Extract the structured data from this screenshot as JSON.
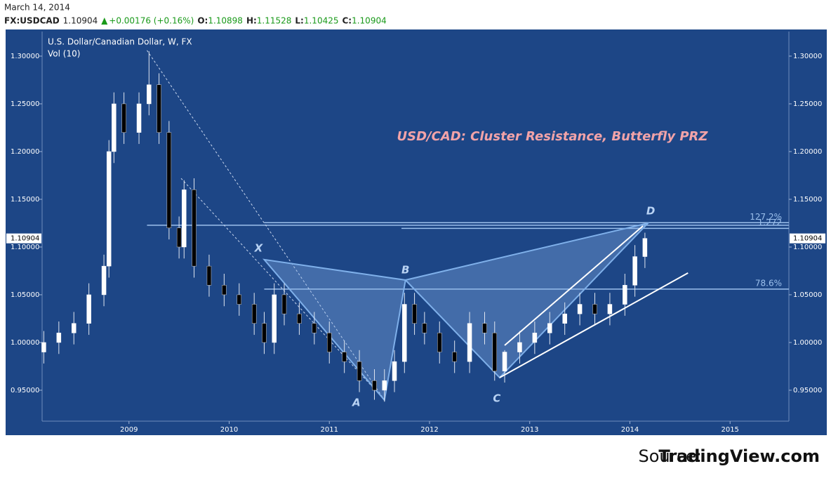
{
  "header": {
    "date": "March 14, 2014",
    "symbol": "FX:USDCAD",
    "price": "1.10904",
    "change": "+0.00176 (+0.16%)",
    "ohlc": [
      {
        "label": "O:",
        "value": "1.10898"
      },
      {
        "label": "H:",
        "value": "1.11528"
      },
      {
        "label": "L:",
        "value": "1.10425"
      },
      {
        "label": "C:",
        "value": "1.10904"
      }
    ]
  },
  "chart_data": {
    "type": "candlestick",
    "title": "USD/CAD: Cluster Resistance, Butterfly PRZ",
    "instrument": "U.S. Dollar/Canadian Dollar, W, FX",
    "indicator": "Vol (10)",
    "x": [
      2008.15,
      2008.3,
      2008.45,
      2008.6,
      2008.75,
      2008.8,
      2008.85,
      2008.95,
      2009.1,
      2009.2,
      2009.3,
      2009.4,
      2009.5,
      2009.55,
      2009.65,
      2009.8,
      2009.95,
      2010.1,
      2010.25,
      2010.35,
      2010.45,
      2010.55,
      2010.7,
      2010.85,
      2011.0,
      2011.15,
      2011.3,
      2011.45,
      2011.55,
      2011.65,
      2011.75,
      2011.85,
      2011.95,
      2012.1,
      2012.25,
      2012.4,
      2012.55,
      2012.65,
      2012.75,
      2012.9,
      2013.05,
      2013.2,
      2013.35,
      2013.5,
      2013.65,
      2013.8,
      2013.95,
      2014.05,
      2014.15
    ],
    "open": [
      0.99,
      1.0,
      1.01,
      1.02,
      1.05,
      1.08,
      1.2,
      1.25,
      1.22,
      1.25,
      1.27,
      1.22,
      1.12,
      1.1,
      1.16,
      1.08,
      1.06,
      1.05,
      1.04,
      1.02,
      1.0,
      1.05,
      1.03,
      1.02,
      1.01,
      0.99,
      0.98,
      0.96,
      0.95,
      0.96,
      0.98,
      1.04,
      1.02,
      1.01,
      0.99,
      0.98,
      1.02,
      1.01,
      0.97,
      0.99,
      1.0,
      1.01,
      1.02,
      1.03,
      1.04,
      1.03,
      1.04,
      1.06,
      1.09
    ],
    "high": [
      1.012,
      1.022,
      1.032,
      1.062,
      1.092,
      1.212,
      1.262,
      1.262,
      1.262,
      1.305,
      1.282,
      1.232,
      1.132,
      1.17,
      1.172,
      1.092,
      1.072,
      1.062,
      1.052,
      1.032,
      1.062,
      1.062,
      1.042,
      1.032,
      1.022,
      1.002,
      0.992,
      0.972,
      0.972,
      0.992,
      1.052,
      1.052,
      1.032,
      1.022,
      1.002,
      1.032,
      1.032,
      1.022,
      0.992,
      1.012,
      1.022,
      1.032,
      1.042,
      1.052,
      1.052,
      1.052,
      1.072,
      1.102,
      1.115
    ],
    "low": [
      0.978,
      0.988,
      0.998,
      1.008,
      1.038,
      1.068,
      1.188,
      1.208,
      1.208,
      1.238,
      1.208,
      1.108,
      1.088,
      1.088,
      1.068,
      1.048,
      1.038,
      1.028,
      1.008,
      0.988,
      0.988,
      1.018,
      1.008,
      0.998,
      0.978,
      0.968,
      0.948,
      0.94,
      0.938,
      0.948,
      0.968,
      1.008,
      0.998,
      0.978,
      0.968,
      0.968,
      0.998,
      0.96,
      0.958,
      0.978,
      0.988,
      0.998,
      1.008,
      1.018,
      1.018,
      1.018,
      1.028,
      1.048,
      1.078
    ],
    "close": [
      1.0,
      1.01,
      1.02,
      1.05,
      1.08,
      1.2,
      1.25,
      1.22,
      1.25,
      1.27,
      1.22,
      1.12,
      1.1,
      1.16,
      1.08,
      1.06,
      1.05,
      1.04,
      1.02,
      1.0,
      1.05,
      1.03,
      1.02,
      1.01,
      0.99,
      0.98,
      0.96,
      0.95,
      0.96,
      0.98,
      1.04,
      1.02,
      1.01,
      0.99,
      0.98,
      1.02,
      1.01,
      0.97,
      0.99,
      1.0,
      1.01,
      1.02,
      1.03,
      1.04,
      1.03,
      1.04,
      1.06,
      1.09,
      1.10904
    ],
    "last_price": 1.10904,
    "xlim": [
      2008.133,
      2015.587
    ],
    "xticks": [
      2009,
      2010,
      2011,
      2012,
      2013,
      2014,
      2015
    ],
    "ylim": [
      0.9176,
      1.3257
    ],
    "yticks": [
      {
        "value": 0.95,
        "label": "0.95000"
      },
      {
        "value": 1.0,
        "label": "1.00000"
      },
      {
        "value": 1.05,
        "label": "1.05000"
      },
      {
        "value": 1.1,
        "label": "1.10000"
      },
      {
        "value": 1.15,
        "label": "1.15000"
      },
      {
        "value": 1.2,
        "label": "1.20000"
      },
      {
        "value": 1.25,
        "label": "1.25000"
      },
      {
        "value": 1.3,
        "label": "1.30000"
      }
    ],
    "pattern": [
      {
        "label": "X",
        "x": 2010.35,
        "y": 1.0868
      },
      {
        "label": "A",
        "x": 2011.55,
        "y": 0.9397
      },
      {
        "label": "B",
        "x": 2011.76,
        "y": 1.0654
      },
      {
        "label": "C",
        "x": 2012.7,
        "y": 0.9632
      },
      {
        "label": "D",
        "x": 2014.18,
        "y": 1.125
      }
    ],
    "levels": [
      {
        "label": "127.2%",
        "x": 2010.35,
        "y": 1.1255
      },
      {
        "label": "1.272",
        "x": 2011.72,
        "y": 1.1195
      },
      {
        "label": "78.6%",
        "x": 2010.35,
        "y": 1.0559
      }
    ],
    "level_extra": [
      {
        "x": 2009.18,
        "y": 1.1228
      }
    ],
    "dashed_lines": [
      {
        "x1": 2009.18,
        "y1": 1.306,
        "x2": 2011.55,
        "y2": 0.9397
      },
      {
        "x1": 2009.52,
        "y1": 1.172,
        "x2": 2011.55,
        "y2": 0.9397
      }
    ],
    "trend_lines": [
      {
        "x1": 2012.7,
        "y1": 0.9632,
        "x2": 2014.58,
        "y2": 1.0728
      },
      {
        "x1": 2012.75,
        "y1": 0.997,
        "x2": 2014.13,
        "y2": 1.122
      }
    ]
  },
  "source": {
    "prefix": "Source:",
    "name": "TradingView.com"
  }
}
